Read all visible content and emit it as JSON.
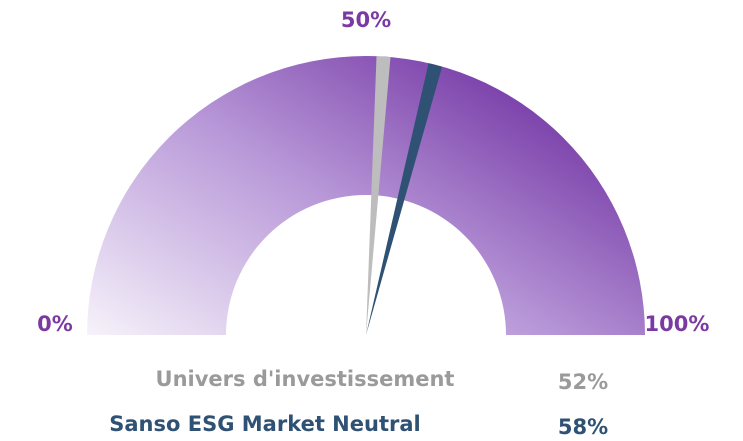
{
  "chart_data": {
    "type": "gauge",
    "lim": [
      0,
      100
    ],
    "ticks": [
      {
        "value": 0,
        "label": "0%"
      },
      {
        "value": 50,
        "label": "50%"
      },
      {
        "value": 100,
        "label": "100%"
      }
    ],
    "tick_color": "#7b3aa3",
    "gradient": [
      "#f6f2fa",
      "#b898d8",
      "#6b2a9e"
    ],
    "series": [
      {
        "name": "Univers d'investissement",
        "value": 52,
        "value_label": "52%",
        "color": "#bdbdbd"
      },
      {
        "name": "Sanso ESG Market Neutral",
        "value": 58,
        "value_label": "58%",
        "color": "#2f5274"
      }
    ]
  }
}
